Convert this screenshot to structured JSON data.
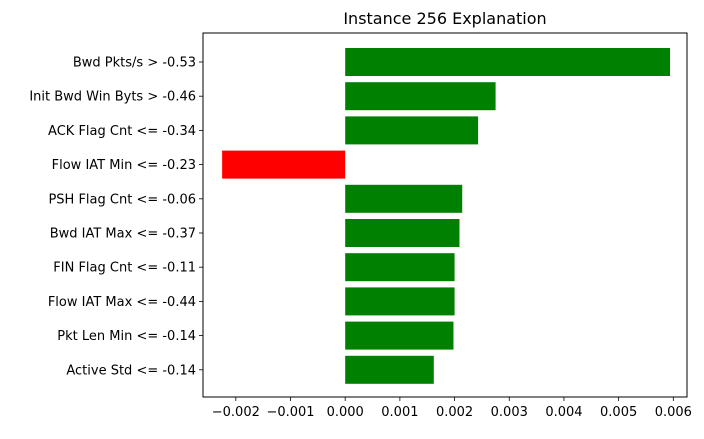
{
  "chart_data": {
    "type": "bar",
    "orientation": "horizontal",
    "title": "Instance 256 Explanation",
    "xlabel": "",
    "ylabel": "",
    "categories": [
      "Bwd Pkts/s > -0.53",
      "Init Bwd Win Byts > -0.46",
      "ACK Flag Cnt <= -0.34",
      "Flow IAT Min <= -0.23",
      "PSH Flag Cnt <= -0.06",
      "Bwd IAT Max <= -0.37",
      "FIN Flag Cnt <= -0.11",
      "Flow IAT Max <= -0.44",
      "Pkt Len Min <= -0.14",
      "Active Std <= -0.14"
    ],
    "values": [
      0.00594,
      0.00275,
      0.00243,
      -0.00225,
      0.00214,
      0.00209,
      0.002,
      0.002,
      0.00198,
      0.00162
    ],
    "xlim": [
      -0.0026,
      0.00625
    ],
    "xticks": [
      -0.002,
      -0.001,
      0.0,
      0.001,
      0.002,
      0.003,
      0.004,
      0.005,
      0.006
    ],
    "xtick_labels": [
      "−0.002",
      "−0.001",
      "0.000",
      "0.001",
      "0.002",
      "0.003",
      "0.004",
      "0.005",
      "0.006"
    ],
    "grid": false,
    "colors": {
      "positive": "#008000",
      "negative": "#ff0000"
    }
  }
}
